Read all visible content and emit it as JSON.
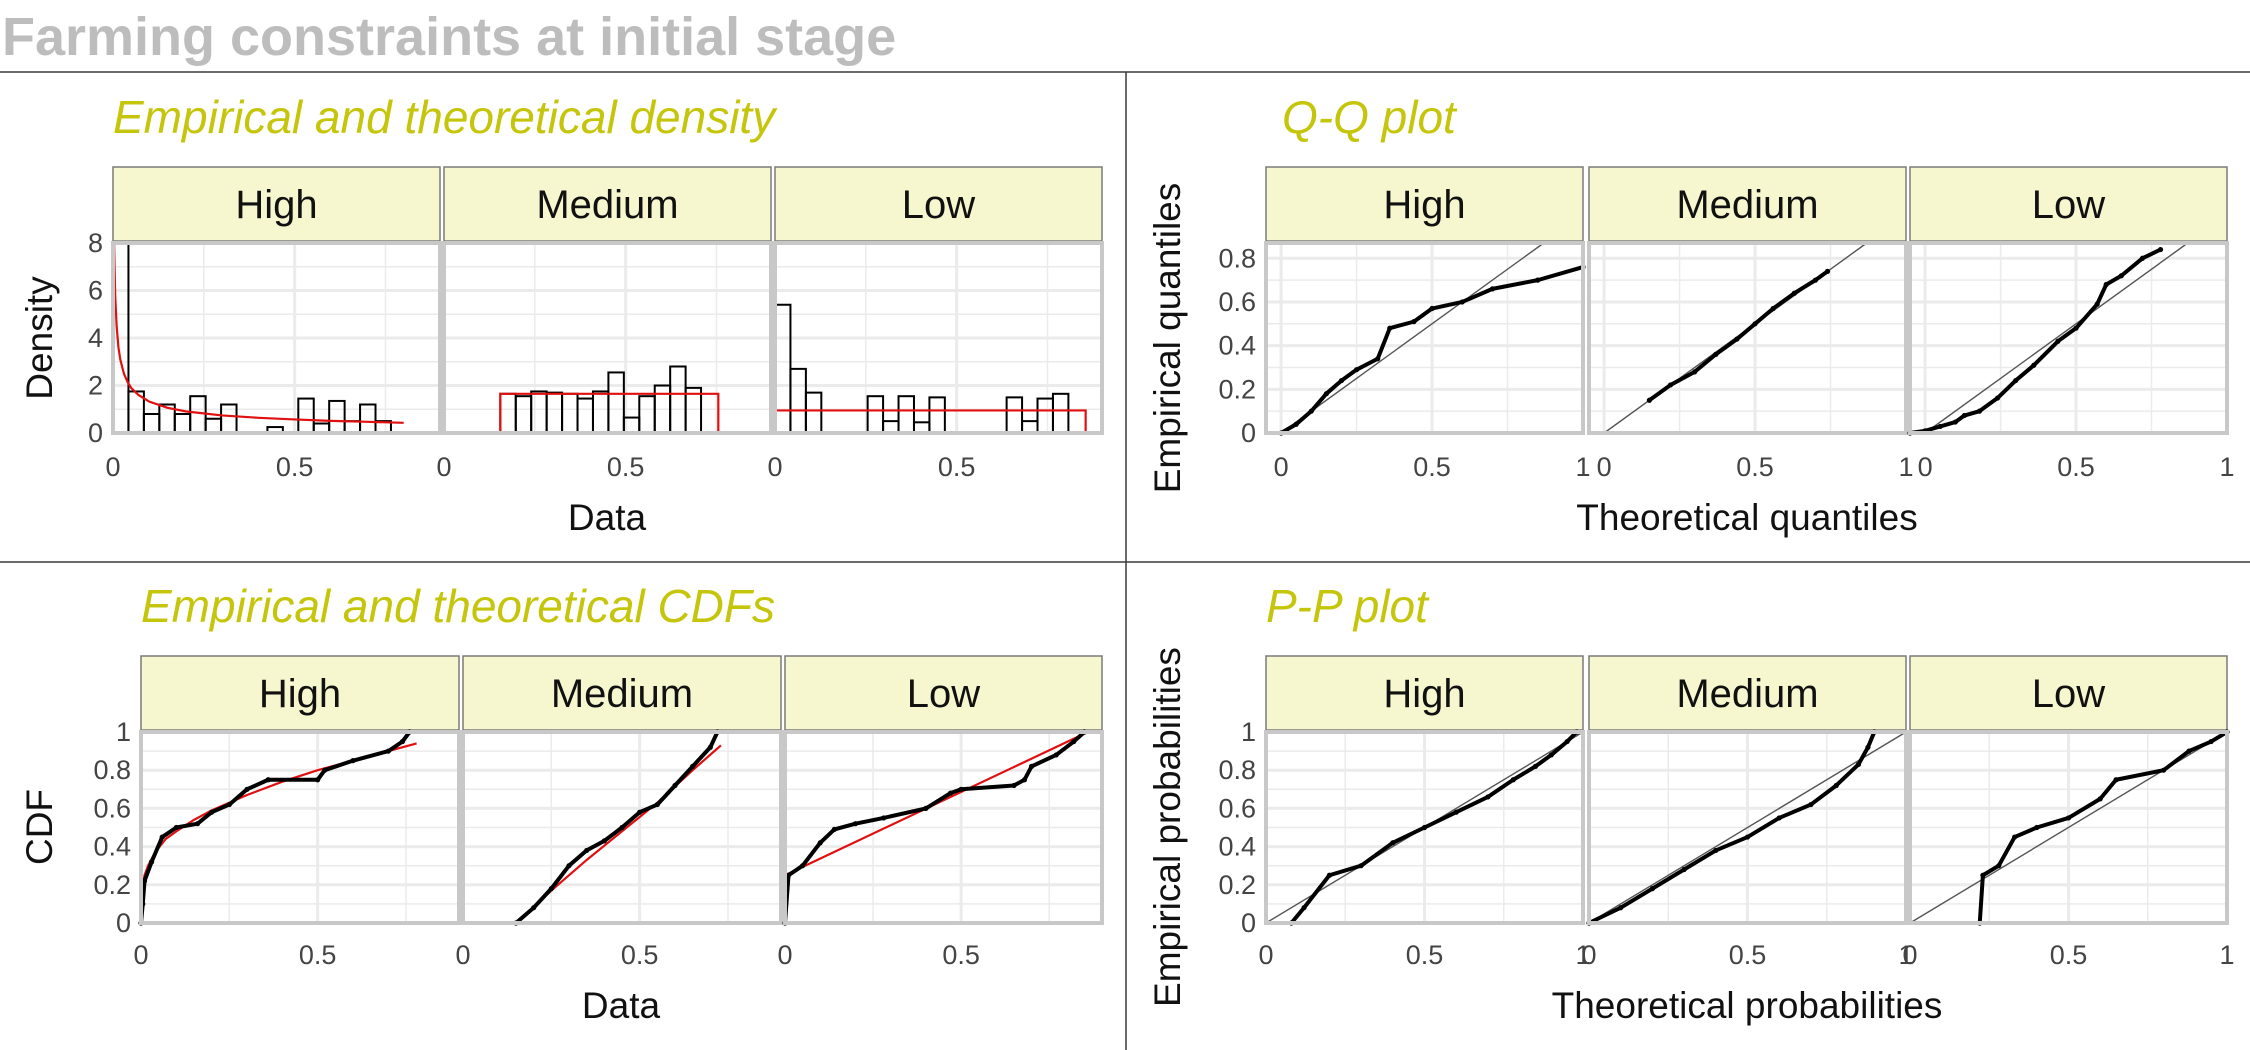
{
  "figure": {
    "title": "Farming constraints at initial stage"
  },
  "colors": {
    "title": "#bdbdbd",
    "panel_title": "#c5c50c",
    "strip_fill": "#f7f7cf",
    "fit_line": "#e01010",
    "ref_line": "#555555",
    "grid": "#ebebeb",
    "data": "#000000"
  },
  "chart_data": [
    {
      "type": "histogram",
      "title": "Empirical and theoretical density",
      "xlabel": "Data",
      "ylabel": "Density",
      "xlim": [
        0,
        0.9
      ],
      "ylim": [
        0,
        8
      ],
      "xticks": [
        0,
        0.5
      ],
      "yticks": [
        0,
        2,
        4,
        6,
        8
      ],
      "facets": [
        {
          "label": "High",
          "bin_width": 0.0425,
          "bins": [
            [
              0.0,
              8.2
            ],
            [
              0.0425,
              1.75
            ],
            [
              0.085,
              0.8
            ],
            [
              0.1275,
              1.2
            ],
            [
              0.17,
              0.8
            ],
            [
              0.2125,
              1.55
            ],
            [
              0.255,
              0.6
            ],
            [
              0.2975,
              1.2
            ],
            [
              0.34,
              0.0
            ],
            [
              0.3825,
              0.0
            ],
            [
              0.425,
              0.25
            ],
            [
              0.4675,
              0.0
            ],
            [
              0.51,
              1.45
            ],
            [
              0.5525,
              0.4
            ],
            [
              0.595,
              1.35
            ],
            [
              0.6375,
              0.5
            ],
            [
              0.68,
              1.2
            ],
            [
              0.7225,
              0.5
            ]
          ],
          "fit": {
            "x": [
              0.003,
              0.006,
              0.01,
              0.015,
              0.02,
              0.03,
              0.04,
              0.05,
              0.07,
              0.1,
              0.15,
              0.2,
              0.3,
              0.4,
              0.5,
              0.6,
              0.7,
              0.8
            ],
            "y": [
              8.0,
              5.8,
              4.5,
              3.6,
              3.1,
              2.5,
              2.15,
              1.9,
              1.6,
              1.32,
              1.06,
              0.91,
              0.74,
              0.64,
              0.57,
              0.51,
              0.47,
              0.43
            ]
          }
        },
        {
          "label": "Medium",
          "bin_width": 0.0425,
          "bins": [
            [
              0.155,
              1.65
            ],
            [
              0.1975,
              1.55
            ],
            [
              0.24,
              1.75
            ],
            [
              0.2825,
              1.7
            ],
            [
              0.325,
              1.65
            ],
            [
              0.3675,
              1.45
            ],
            [
              0.41,
              1.75
            ],
            [
              0.4525,
              2.55
            ],
            [
              0.495,
              0.65
            ],
            [
              0.5375,
              1.55
            ],
            [
              0.58,
              2.0
            ],
            [
              0.6225,
              2.8
            ],
            [
              0.665,
              1.9
            ]
          ],
          "fit": {
            "x": [
              0.155,
              0.155,
              0.755,
              0.755
            ],
            "y": [
              0,
              1.65,
              1.65,
              0
            ]
          }
        },
        {
          "label": "Low",
          "bin_width": 0.0425,
          "bins": [
            [
              0.0,
              5.4
            ],
            [
              0.0425,
              2.7
            ],
            [
              0.085,
              1.7
            ],
            [
              0.1275,
              0.0
            ],
            [
              0.17,
              0.0
            ],
            [
              0.2125,
              0.0
            ],
            [
              0.255,
              1.55
            ],
            [
              0.2975,
              0.5
            ],
            [
              0.34,
              1.55
            ],
            [
              0.3825,
              0.45
            ],
            [
              0.425,
              1.5
            ],
            [
              0.4675,
              0.0
            ],
            [
              0.51,
              0.0
            ],
            [
              0.5525,
              0.0
            ],
            [
              0.595,
              0.0
            ],
            [
              0.6375,
              1.5
            ],
            [
              0.68,
              0.5
            ],
            [
              0.7225,
              1.45
            ],
            [
              0.765,
              1.65
            ]
          ],
          "fit": {
            "x": [
              0,
              0,
              0.855,
              0.855
            ],
            "y": [
              0,
              0.95,
              0.95,
              0
            ]
          }
        }
      ]
    },
    {
      "type": "qq",
      "title": "Q-Q plot",
      "xlabel": "Theoretical quantiles",
      "ylabel": "Empirical quantiles",
      "xlim": [
        -0.05,
        1.0
      ],
      "ylim": [
        0,
        0.87
      ],
      "xticks": [
        0,
        0.5,
        1
      ],
      "yticks": [
        0,
        0.2,
        0.4,
        0.6,
        0.8
      ],
      "facets": [
        {
          "label": "High",
          "points": [
            [
              0.0,
              0.0
            ],
            [
              0.05,
              0.04
            ],
            [
              0.1,
              0.1
            ],
            [
              0.15,
              0.18
            ],
            [
              0.2,
              0.24
            ],
            [
              0.25,
              0.29
            ],
            [
              0.32,
              0.34
            ],
            [
              0.36,
              0.48
            ],
            [
              0.44,
              0.51
            ],
            [
              0.5,
              0.57
            ],
            [
              0.6,
              0.6
            ],
            [
              0.7,
              0.66
            ],
            [
              0.85,
              0.7
            ],
            [
              1.0,
              0.76
            ]
          ]
        },
        {
          "label": "Medium",
          "points": [
            [
              0.15,
              0.15
            ],
            [
              0.22,
              0.22
            ],
            [
              0.3,
              0.28
            ],
            [
              0.37,
              0.36
            ],
            [
              0.44,
              0.43
            ],
            [
              0.5,
              0.5
            ],
            [
              0.56,
              0.57
            ],
            [
              0.63,
              0.64
            ],
            [
              0.7,
              0.7
            ],
            [
              0.74,
              0.74
            ]
          ]
        },
        {
          "label": "Low",
          "points": [
            [
              -0.05,
              0.0
            ],
            [
              0.0,
              0.01
            ],
            [
              0.05,
              0.03
            ],
            [
              0.1,
              0.05
            ],
            [
              0.13,
              0.08
            ],
            [
              0.18,
              0.1
            ],
            [
              0.24,
              0.16
            ],
            [
              0.3,
              0.24
            ],
            [
              0.36,
              0.31
            ],
            [
              0.44,
              0.42
            ],
            [
              0.5,
              0.48
            ],
            [
              0.57,
              0.59
            ],
            [
              0.6,
              0.68
            ],
            [
              0.65,
              0.72
            ],
            [
              0.72,
              0.8
            ],
            [
              0.78,
              0.84
            ]
          ]
        }
      ]
    },
    {
      "type": "ecdf",
      "title": "Empirical and theoretical CDFs",
      "xlabel": "Data",
      "ylabel": "CDF",
      "xlim": [
        0,
        0.9
      ],
      "ylim": [
        0,
        1
      ],
      "xticks": [
        0,
        0.5
      ],
      "yticks": [
        0,
        0.2,
        0.4,
        0.6,
        0.8,
        1
      ],
      "facets": [
        {
          "label": "High",
          "ecdf": [
            [
              0.0,
              0.0
            ],
            [
              0.005,
              0.1
            ],
            [
              0.01,
              0.22
            ],
            [
              0.03,
              0.32
            ],
            [
              0.06,
              0.45
            ],
            [
              0.1,
              0.5
            ],
            [
              0.16,
              0.52
            ],
            [
              0.2,
              0.58
            ],
            [
              0.25,
              0.62
            ],
            [
              0.3,
              0.7
            ],
            [
              0.36,
              0.75
            ],
            [
              0.5,
              0.75
            ],
            [
              0.52,
              0.8
            ],
            [
              0.6,
              0.85
            ],
            [
              0.7,
              0.9
            ],
            [
              0.74,
              0.95
            ],
            [
              0.76,
              1.0
            ]
          ],
          "fit": {
            "x": [
              0.001,
              0.005,
              0.01,
              0.02,
              0.04,
              0.07,
              0.1,
              0.15,
              0.2,
              0.3,
              0.4,
              0.5,
              0.6,
              0.7,
              0.78
            ],
            "y": [
              0.1,
              0.2,
              0.25,
              0.3,
              0.37,
              0.44,
              0.48,
              0.54,
              0.59,
              0.67,
              0.74,
              0.8,
              0.85,
              0.9,
              0.94
            ]
          }
        },
        {
          "label": "Medium",
          "ecdf": [
            [
              0.15,
              0.0
            ],
            [
              0.2,
              0.08
            ],
            [
              0.25,
              0.18
            ],
            [
              0.3,
              0.3
            ],
            [
              0.35,
              0.38
            ],
            [
              0.4,
              0.43
            ],
            [
              0.45,
              0.5
            ],
            [
              0.5,
              0.58
            ],
            [
              0.55,
              0.62
            ],
            [
              0.6,
              0.72
            ],
            [
              0.65,
              0.82
            ],
            [
              0.7,
              0.92
            ],
            [
              0.72,
              1.0
            ]
          ],
          "fit": {
            "x": [
              0.1,
              0.15,
              0.25,
              0.35,
              0.45,
              0.55,
              0.65,
              0.73
            ],
            "y": [
              0.0,
              0.0,
              0.17,
              0.33,
              0.48,
              0.63,
              0.8,
              0.93
            ]
          }
        },
        {
          "label": "Low",
          "ecdf": [
            [
              0.0,
              0.0
            ],
            [
              0.01,
              0.25
            ],
            [
              0.05,
              0.3
            ],
            [
              0.1,
              0.42
            ],
            [
              0.14,
              0.49
            ],
            [
              0.2,
              0.52
            ],
            [
              0.28,
              0.55
            ],
            [
              0.4,
              0.6
            ],
            [
              0.47,
              0.68
            ],
            [
              0.5,
              0.7
            ],
            [
              0.65,
              0.72
            ],
            [
              0.68,
              0.75
            ],
            [
              0.7,
              0.82
            ],
            [
              0.77,
              0.88
            ],
            [
              0.82,
              0.95
            ],
            [
              0.85,
              1.0
            ]
          ],
          "fit": {
            "x": [
              0.0,
              0.86
            ],
            "y": [
              0.25,
              1.0
            ]
          }
        }
      ]
    },
    {
      "type": "pp",
      "title": "P-P plot",
      "xlabel": "Theoretical probabilities",
      "ylabel": "Empirical probabilities",
      "xlim": [
        0,
        1
      ],
      "ylim": [
        0,
        1
      ],
      "xticks": [
        0,
        0.5,
        1
      ],
      "yticks": [
        0,
        0.2,
        0.4,
        0.6,
        0.8,
        1
      ],
      "tick_labels": [
        "0",
        "0.5",
        "1"
      ],
      "facets": [
        {
          "label": "High",
          "points": [
            [
              0.08,
              0.0
            ],
            [
              0.12,
              0.08
            ],
            [
              0.2,
              0.25
            ],
            [
              0.3,
              0.3
            ],
            [
              0.4,
              0.42
            ],
            [
              0.5,
              0.5
            ],
            [
              0.6,
              0.58
            ],
            [
              0.7,
              0.66
            ],
            [
              0.78,
              0.75
            ],
            [
              0.85,
              0.82
            ],
            [
              0.9,
              0.88
            ],
            [
              0.95,
              0.95
            ],
            [
              0.98,
              1.0
            ]
          ]
        },
        {
          "label": "Medium",
          "points": [
            [
              0.0,
              0.0
            ],
            [
              0.1,
              0.08
            ],
            [
              0.2,
              0.18
            ],
            [
              0.3,
              0.28
            ],
            [
              0.4,
              0.38
            ],
            [
              0.5,
              0.45
            ],
            [
              0.6,
              0.55
            ],
            [
              0.7,
              0.62
            ],
            [
              0.78,
              0.72
            ],
            [
              0.85,
              0.83
            ],
            [
              0.88,
              0.92
            ],
            [
              0.9,
              1.0
            ]
          ]
        },
        {
          "label": "Low",
          "points": [
            [
              0.22,
              0.0
            ],
            [
              0.23,
              0.25
            ],
            [
              0.28,
              0.3
            ],
            [
              0.33,
              0.45
            ],
            [
              0.4,
              0.5
            ],
            [
              0.5,
              0.55
            ],
            [
              0.6,
              0.65
            ],
            [
              0.65,
              0.75
            ],
            [
              0.8,
              0.8
            ],
            [
              0.88,
              0.9
            ],
            [
              0.95,
              0.95
            ],
            [
              1.0,
              1.0
            ]
          ]
        }
      ]
    }
  ]
}
